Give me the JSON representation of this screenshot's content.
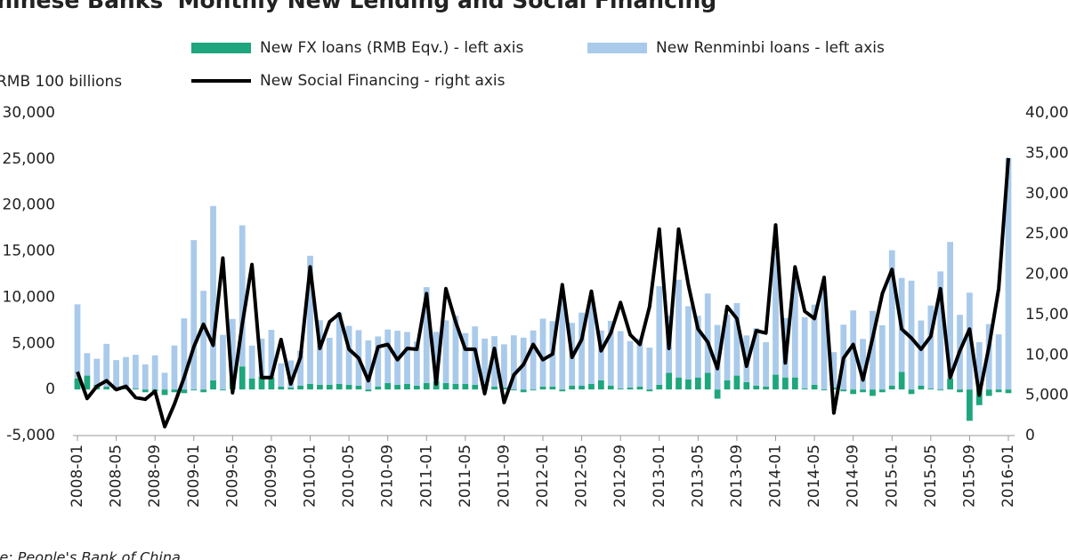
{
  "chart_data": {
    "type": "bar-line",
    "title": "Chinese Banks' Monthly New Lending and Social Financing",
    "y_label": "RMB 100 billions",
    "source": "Source: People's Bank of China",
    "legend": "top",
    "categories": [
      "2008-01",
      null,
      null,
      null,
      "2008-05",
      null,
      null,
      null,
      "2008-09",
      null,
      null,
      null,
      "2009-01",
      null,
      null,
      null,
      "2009-05",
      null,
      null,
      null,
      "2009-09",
      null,
      null,
      null,
      "2010-01",
      null,
      null,
      null,
      "2010-05",
      null,
      null,
      null,
      "2010-09",
      null,
      null,
      null,
      "2011-01",
      null,
      null,
      null,
      "2011-05",
      null,
      null,
      null,
      "2011-09",
      null,
      null,
      null,
      "2012-01",
      null,
      null,
      null,
      "2012-05",
      null,
      null,
      null,
      "2012-09",
      null,
      null,
      null,
      "2013-01",
      null,
      null,
      null,
      "2013-05",
      null,
      null,
      null,
      "2013-09",
      null,
      null,
      null,
      "2014-01",
      null,
      null,
      null,
      "2014-05",
      null,
      null,
      null,
      "2014-09",
      null,
      null,
      null,
      "2015-01",
      null,
      null,
      null,
      "2015-05",
      null,
      null,
      null,
      "2015-09",
      null,
      null,
      null,
      "2016-01"
    ],
    "series": [
      {
        "name": "New FX loans (RMB Eqv.) - left axis",
        "color": "#1ea67c",
        "kind": "bar",
        "axis": "y",
        "values": [
          1200,
          1500,
          500,
          300,
          -100,
          200,
          100,
          -300,
          -200,
          -600,
          -300,
          -400,
          -100,
          -300,
          1000,
          -100,
          1000,
          2500,
          1200,
          1400,
          1300,
          300,
          200,
          400,
          600,
          500,
          500,
          600,
          500,
          400,
          -200,
          300,
          700,
          500,
          600,
          400,
          700,
          900,
          700,
          600,
          600,
          500,
          600,
          300,
          200,
          -100,
          -300,
          -100,
          300,
          300,
          -200,
          400,
          400,
          600,
          1000,
          400,
          100,
          200,
          300,
          -200,
          500,
          1800,
          1300,
          1100,
          1300,
          1800,
          -1000,
          1000,
          1500,
          800,
          400,
          300,
          1600,
          1300,
          1300,
          100,
          500,
          -100,
          200,
          -200,
          -500,
          -300,
          -700,
          -300,
          400,
          1900,
          -500,
          400,
          100,
          -100,
          1200,
          -300,
          -3400,
          -1700,
          -700,
          -300,
          -400
        ]
      },
      {
        "name": "New Renminbi loans - left axis",
        "color": "#a9caeb",
        "kind": "bar",
        "axis": "y",
        "values": [
          8036,
          2437,
          2834,
          4643,
          3185,
          3320,
          3660,
          2715,
          3702,
          1814,
          4769,
          7718,
          16200,
          10700,
          18900,
          5918,
          6645,
          15300,
          3559,
          4104,
          5167,
          2530,
          2948,
          3798,
          13900,
          7005,
          5107,
          7740,
          6394,
          6034,
          5328,
          5452,
          5800,
          5868,
          5640,
          4807,
          10400,
          5356,
          6794,
          7396,
          5516,
          6339,
          4925,
          5485,
          4700,
          5868,
          5622,
          6405,
          7381,
          7107,
          10100,
          6818,
          7932,
          9198,
          5401,
          7039,
          6232,
          5053,
          5229,
          4543,
          10700,
          6200,
          10600,
          7929,
          6694,
          8605,
          6999,
          7134,
          7870,
          5061,
          6246,
          4825,
          13200,
          6445,
          10500,
          7747,
          8708,
          10800,
          3852,
          7025,
          8572,
          5483,
          8527,
          6968,
          14700,
          10200,
          11800,
          7079,
          9008,
          12800,
          14800,
          8096,
          10500,
          5136,
          7089,
          5978,
          25100
        ]
      },
      {
        "name": "New Social Financing - right axis",
        "color": "#000000",
        "kind": "line",
        "axis": "y2",
        "values": [
          7900,
          4600,
          6100,
          6800,
          5700,
          6100,
          4700,
          4500,
          5500,
          1100,
          3900,
          7200,
          11000,
          13800,
          11200,
          22000,
          5300,
          13800,
          21200,
          7200,
          7200,
          11900,
          6400,
          9700,
          20900,
          10800,
          14100,
          15100,
          10700,
          9600,
          6800,
          11000,
          11300,
          9400,
          10800,
          10700,
          17600,
          6400,
          18200,
          14100,
          10700,
          10700,
          5200,
          10800,
          4100,
          7500,
          8800,
          11300,
          9400,
          10100,
          18700,
          9700,
          11900,
          17900,
          10500,
          12700,
          16500,
          12500,
          11300,
          16000,
          25600,
          10800,
          25600,
          18700,
          13200,
          11600,
          8300,
          16000,
          14500,
          8600,
          13000,
          12700,
          26100,
          9000,
          20900,
          15400,
          14500,
          19600,
          2800,
          9600,
          11300,
          6900,
          12100,
          17600,
          20600,
          13200,
          12100,
          10700,
          12300,
          18200,
          7200,
          10500,
          13200,
          5000,
          11000,
          18200,
          34400
        ]
      }
    ],
    "ylim": [
      -5000,
      30000
    ],
    "yticks": [
      {
        "value": -5000,
        "label": "-5,000"
      },
      0,
      {
        "value": 5000,
        "label": "5,000"
      },
      {
        "value": 10000,
        "label": "10,000"
      },
      {
        "value": 15000,
        "label": "15,000"
      },
      {
        "value": 20000,
        "label": "20,000"
      },
      {
        "value": 25000,
        "label": "25,000"
      },
      {
        "value": 30000,
        "label": "30,000"
      }
    ],
    "y2lim": [
      0,
      40000
    ],
    "y2ticks": [
      0,
      {
        "value": 5000,
        "label": "5,000"
      },
      {
        "value": 10000,
        "label": "10,000"
      },
      {
        "value": 15000,
        "label": "15,000"
      },
      {
        "value": 20000,
        "label": "20,000"
      },
      {
        "value": 25000,
        "label": "25,000"
      },
      {
        "value": 30000,
        "label": "30,000"
      },
      {
        "value": 35000,
        "label": "35,000"
      },
      {
        "value": 40000,
        "label": "40,000"
      }
    ]
  }
}
